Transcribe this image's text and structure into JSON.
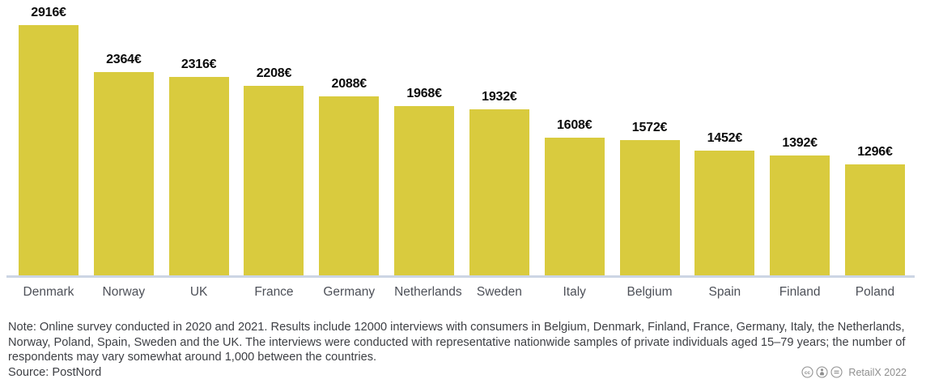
{
  "chart_data": {
    "type": "bar",
    "title": "",
    "xlabel": "",
    "ylabel": "",
    "categories": [
      "Denmark",
      "Norway",
      "UK",
      "France",
      "Germany",
      "Netherlands",
      "Sweden",
      "Italy",
      "Belgium",
      "Spain",
      "Finland",
      "Poland"
    ],
    "values": [
      2916,
      2364,
      2316,
      2208,
      2088,
      1968,
      1932,
      1608,
      1572,
      1452,
      1392,
      1296
    ],
    "value_labels": [
      "2916€",
      "2364€",
      "2316€",
      "2208€",
      "2088€",
      "1968€",
      "1932€",
      "1608€",
      "1572€",
      "1452€",
      "1392€",
      "1296€"
    ],
    "unit": "€",
    "ylim": [
      0,
      2916
    ],
    "grid": false,
    "legend": false,
    "bar_color": "#d9cb3e"
  },
  "footer": {
    "note": "Note: Online survey conducted in 2020 and 2021. Results include 12000 interviews with consumers in Belgium, Denmark, Finland, France, Germany, Italy, the Netherlands, Norway, Poland, Spain, Sweden and the UK. The interviews were conducted with representative nationwide samples of private individuals aged 15–79 years; the number of respondents may vary somewhat around 1,000 between the countries.",
    "source": "Source: PostNord",
    "license_icons": [
      "cc-icon",
      "attribution-icon",
      "no-derivatives-icon"
    ],
    "credit": "RetailX 2022"
  },
  "colors": {
    "bar": "#d9cb3e",
    "axis_line": "#ccd5e4",
    "value_label": "#0b0b0b",
    "category_label": "#4d5058",
    "note_text": "#3d3f44",
    "credit_text": "#8f8f8f"
  }
}
